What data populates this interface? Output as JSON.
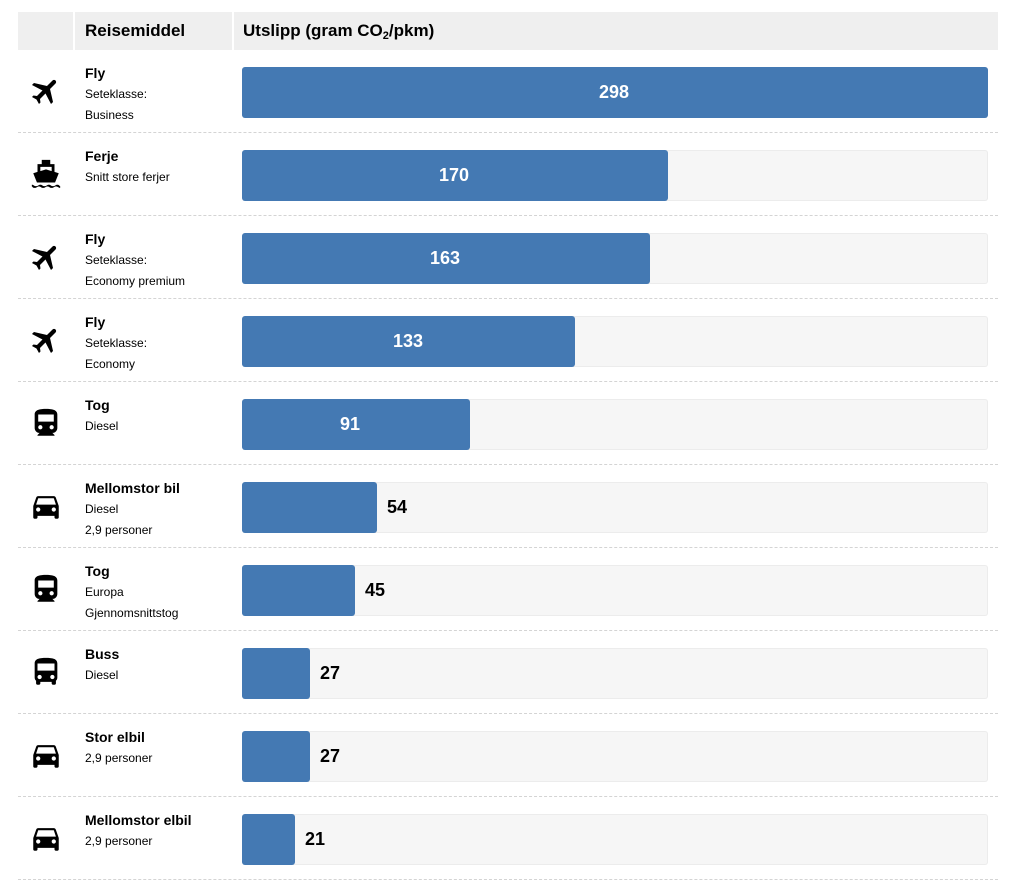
{
  "header": {
    "mode_label": "Reisemiddel",
    "emission_label_pre": "Utslipp (gram CO",
    "emission_label_sub": "2",
    "emission_label_post": "/pkm)"
  },
  "chart_data": {
    "type": "bar",
    "orientation": "horizontal",
    "xlim": [
      0,
      298
    ],
    "categories": [
      [
        "Fly",
        "Seteklasse:",
        "Business"
      ],
      [
        "Ferje",
        "Snitt store ferjer"
      ],
      [
        "Fly",
        "Seteklasse:",
        "Economy premium"
      ],
      [
        "Fly",
        "Seteklasse:",
        "Economy"
      ],
      [
        "Tog",
        "Diesel"
      ],
      [
        "Mellomstor bil",
        "Diesel",
        "2,9 personer"
      ],
      [
        "Tog",
        "Europa",
        "Gjennomsnittstog"
      ],
      [
        "Buss",
        "Diesel"
      ],
      [
        "Stor elbil",
        "2,9 personer"
      ],
      [
        "Mellomstor elbil",
        "2,9 personer"
      ]
    ],
    "values": [
      298,
      170,
      163,
      133,
      91,
      54,
      45,
      27,
      27,
      21
    ],
    "icons": [
      "plane-icon",
      "ferry-icon",
      "plane-icon",
      "plane-icon",
      "train-icon",
      "car-icon",
      "train-icon",
      "bus-icon",
      "car-icon",
      "car-icon"
    ],
    "bar_color": "#4479b3",
    "track_color": "#f6f6f6"
  }
}
